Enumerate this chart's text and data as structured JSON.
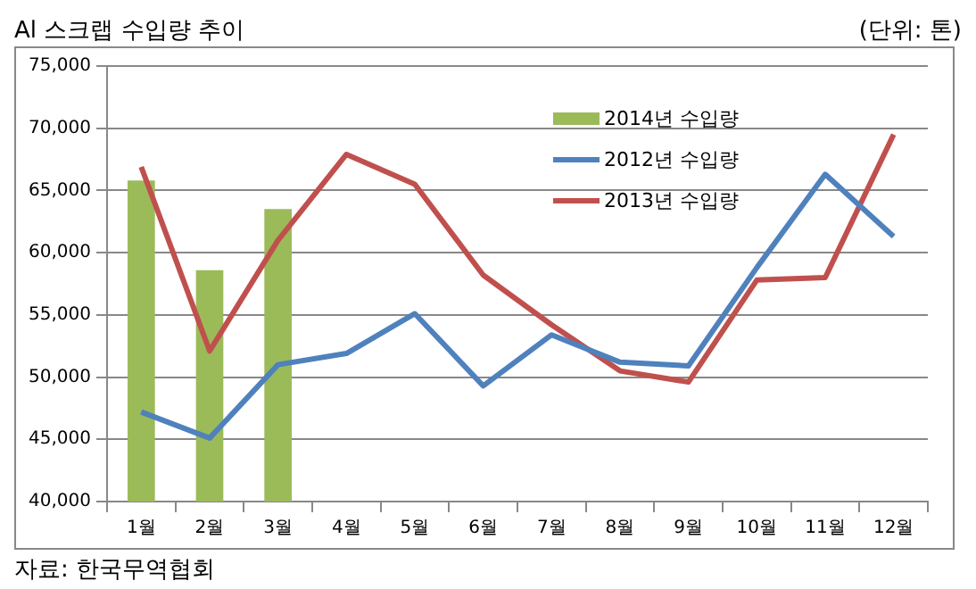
{
  "chart_data": {
    "type": "bar",
    "title": "Al 스크랩 수입량 추이",
    "annotations": [
      "(단위: 톤)",
      "자료: 한국무역협회"
    ],
    "categories": [
      "1월",
      "2월",
      "3월",
      "4월",
      "5월",
      "6월",
      "7월",
      "8월",
      "9월",
      "10월",
      "11월",
      "12월"
    ],
    "series": [
      {
        "name": "2014년 수입량",
        "color": "#9bbb59",
        "values": [
          65800,
          58600,
          63500,
          null,
          null,
          null,
          null,
          null,
          null,
          null,
          null,
          null
        ]
      },
      {
        "name": "2012년 수입량",
        "type": "line",
        "color": "#4f81bd",
        "values": [
          47200,
          45100,
          51000,
          51900,
          55100,
          49300,
          53400,
          51200,
          50900,
          58800,
          66300,
          61300
        ]
      },
      {
        "name": "2013년 수입량",
        "type": "line",
        "color": "#c0504d",
        "values": [
          66900,
          52100,
          61000,
          67900,
          65500,
          58200,
          54200,
          50500,
          49600,
          57800,
          58000,
          69500
        ]
      }
    ],
    "ylim": [
      40000,
      75000
    ],
    "yticks": [
      {
        "value": 40000,
        "label": "40,000"
      },
      {
        "value": 45000,
        "label": "45,000"
      },
      {
        "value": 50000,
        "label": "50,000"
      },
      {
        "value": 55000,
        "label": "55,000"
      },
      {
        "value": 60000,
        "label": "60,000"
      },
      {
        "value": 65000,
        "label": "65,000"
      },
      {
        "value": 70000,
        "label": "70,000"
      },
      {
        "value": 75000,
        "label": "75,000"
      }
    ],
    "grid": "y",
    "legend": "top right",
    "marker": "none"
  }
}
